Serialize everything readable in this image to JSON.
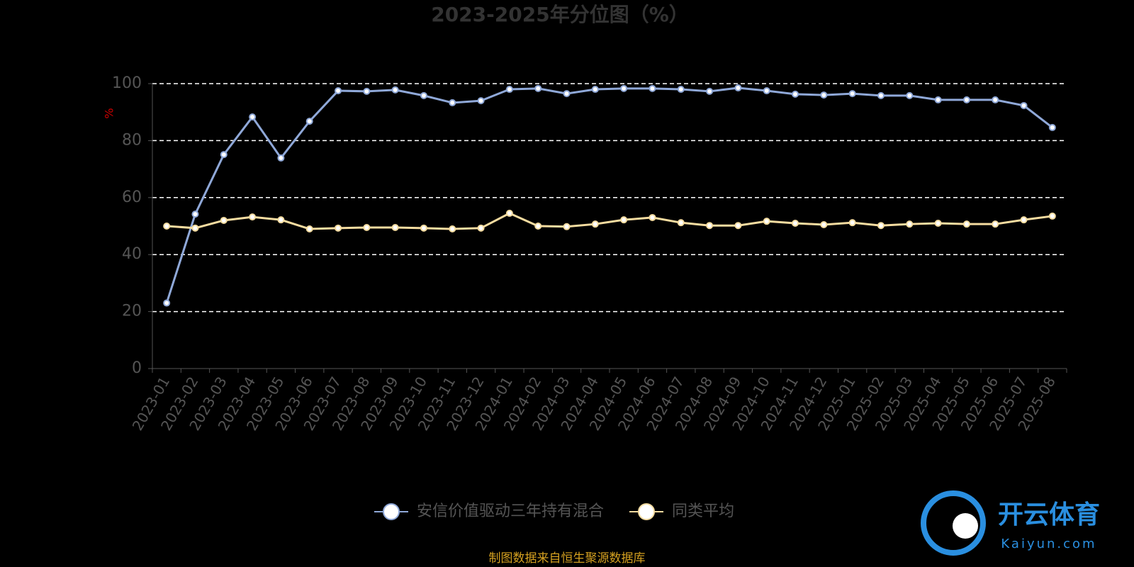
{
  "chart_data": {
    "type": "line",
    "title": "2023-2025年分位图（%）",
    "y_label": "%",
    "categories": [
      "2023-01",
      "2023-02",
      "2023-03",
      "2023-04",
      "2023-05",
      "2023-06",
      "2023-07",
      "2023-08",
      "2023-09",
      "2023-10",
      "2023-11",
      "2023-12",
      "2024-01",
      "2024-02",
      "2024-03",
      "2024-04",
      "2024-05",
      "2024-06",
      "2024-07",
      "2024-08",
      "2024-09",
      "2024-10",
      "2024-11",
      "2024-12",
      "2025-01",
      "2025-02",
      "2025-03",
      "2025-04",
      "2025-05",
      "2025-06",
      "2025-07",
      "2025-08"
    ],
    "series": [
      {
        "name": "安信价值驱动三年持有混合",
        "color": "#8fa8d8",
        "values": [
          23,
          54.2,
          75.1,
          88.3,
          73.9,
          86.8,
          97.5,
          97.3,
          97.8,
          95.8,
          93.3,
          94,
          98,
          98.3,
          96.5,
          98,
          98.3,
          98.3,
          98,
          97.3,
          98.5,
          97.5,
          96.3,
          96,
          96.5,
          95.8,
          95.8,
          94.3,
          94.3,
          94.3,
          92.3,
          84.6
        ]
      },
      {
        "name": "同类平均",
        "color": "#f5dca0",
        "values": [
          50,
          49.3,
          52,
          53.2,
          52.2,
          49,
          49.3,
          49.5,
          49.5,
          49.3,
          49,
          49.3,
          54.5,
          50,
          49.8,
          50.7,
          52.2,
          53,
          51.2,
          50.2,
          50.2,
          51.7,
          51,
          50.5,
          51.2,
          50.2,
          50.7,
          51,
          50.7,
          50.7,
          52.2,
          53.5
        ]
      }
    ],
    "ylim": [
      0,
      100
    ],
    "yticks": [
      0,
      20,
      40,
      60,
      80,
      100
    ],
    "grid": true,
    "legend": "bottom",
    "source": "制图数据来自恒生聚源数据库",
    "watermark": {
      "brand": "开云体育",
      "site": "Kaiyun.com"
    }
  }
}
